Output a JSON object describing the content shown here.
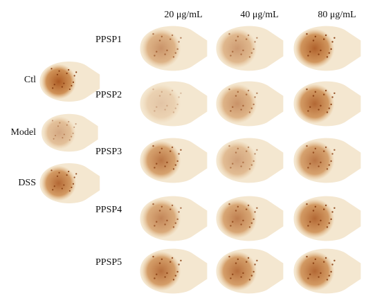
{
  "column_headers": [
    "20 μg/mL",
    "40 μg/mL",
    "80 μg/mL"
  ],
  "row_labels": [
    "PPSP1",
    "PPSP2",
    "PPSP3",
    "PPSP4",
    "PPSP5"
  ],
  "control_labels": [
    "Ctl",
    "Model",
    "DSS"
  ]
}
